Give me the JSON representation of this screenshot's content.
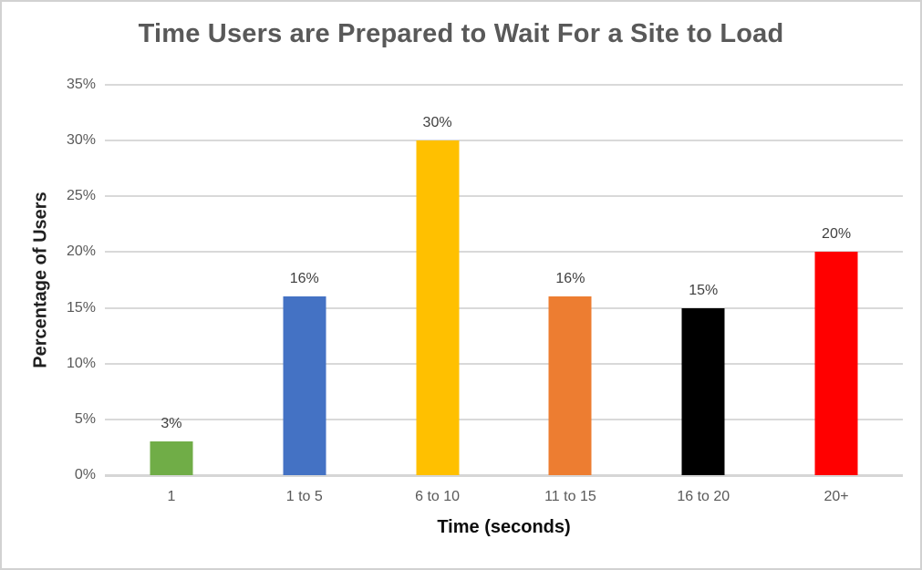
{
  "chart_data": {
    "type": "bar",
    "title": "Time Users are Prepared to Wait For a Site to Load",
    "xlabel": "Time (seconds)",
    "ylabel": "Percentage of Users",
    "categories": [
      "1",
      "1 to 5",
      "6 to 10",
      "11 to 15",
      "16 to 20",
      "20+"
    ],
    "values": [
      3,
      16,
      30,
      16,
      15,
      20
    ],
    "data_labels": [
      "3%",
      "16%",
      "30%",
      "16%",
      "15%",
      "20%"
    ],
    "bar_colors": [
      "#70AD47",
      "#4472C4",
      "#FFC000",
      "#ED7D31",
      "#000000",
      "#FF0000"
    ],
    "ylim": [
      0,
      35
    ],
    "ytick_step": 5,
    "ytick_labels": [
      "0%",
      "5%",
      "10%",
      "15%",
      "20%",
      "25%",
      "30%",
      "35%"
    ],
    "grid": true,
    "legend_position": "none"
  },
  "colors": {
    "title_text": "#595959",
    "axis_title_text": "#1f1f1f",
    "tick_label_text": "#595959",
    "data_label_text": "#404040",
    "gridline": "#D9D9D9",
    "chart_border": "#D2D2D2",
    "background": "#FFFFFF"
  }
}
